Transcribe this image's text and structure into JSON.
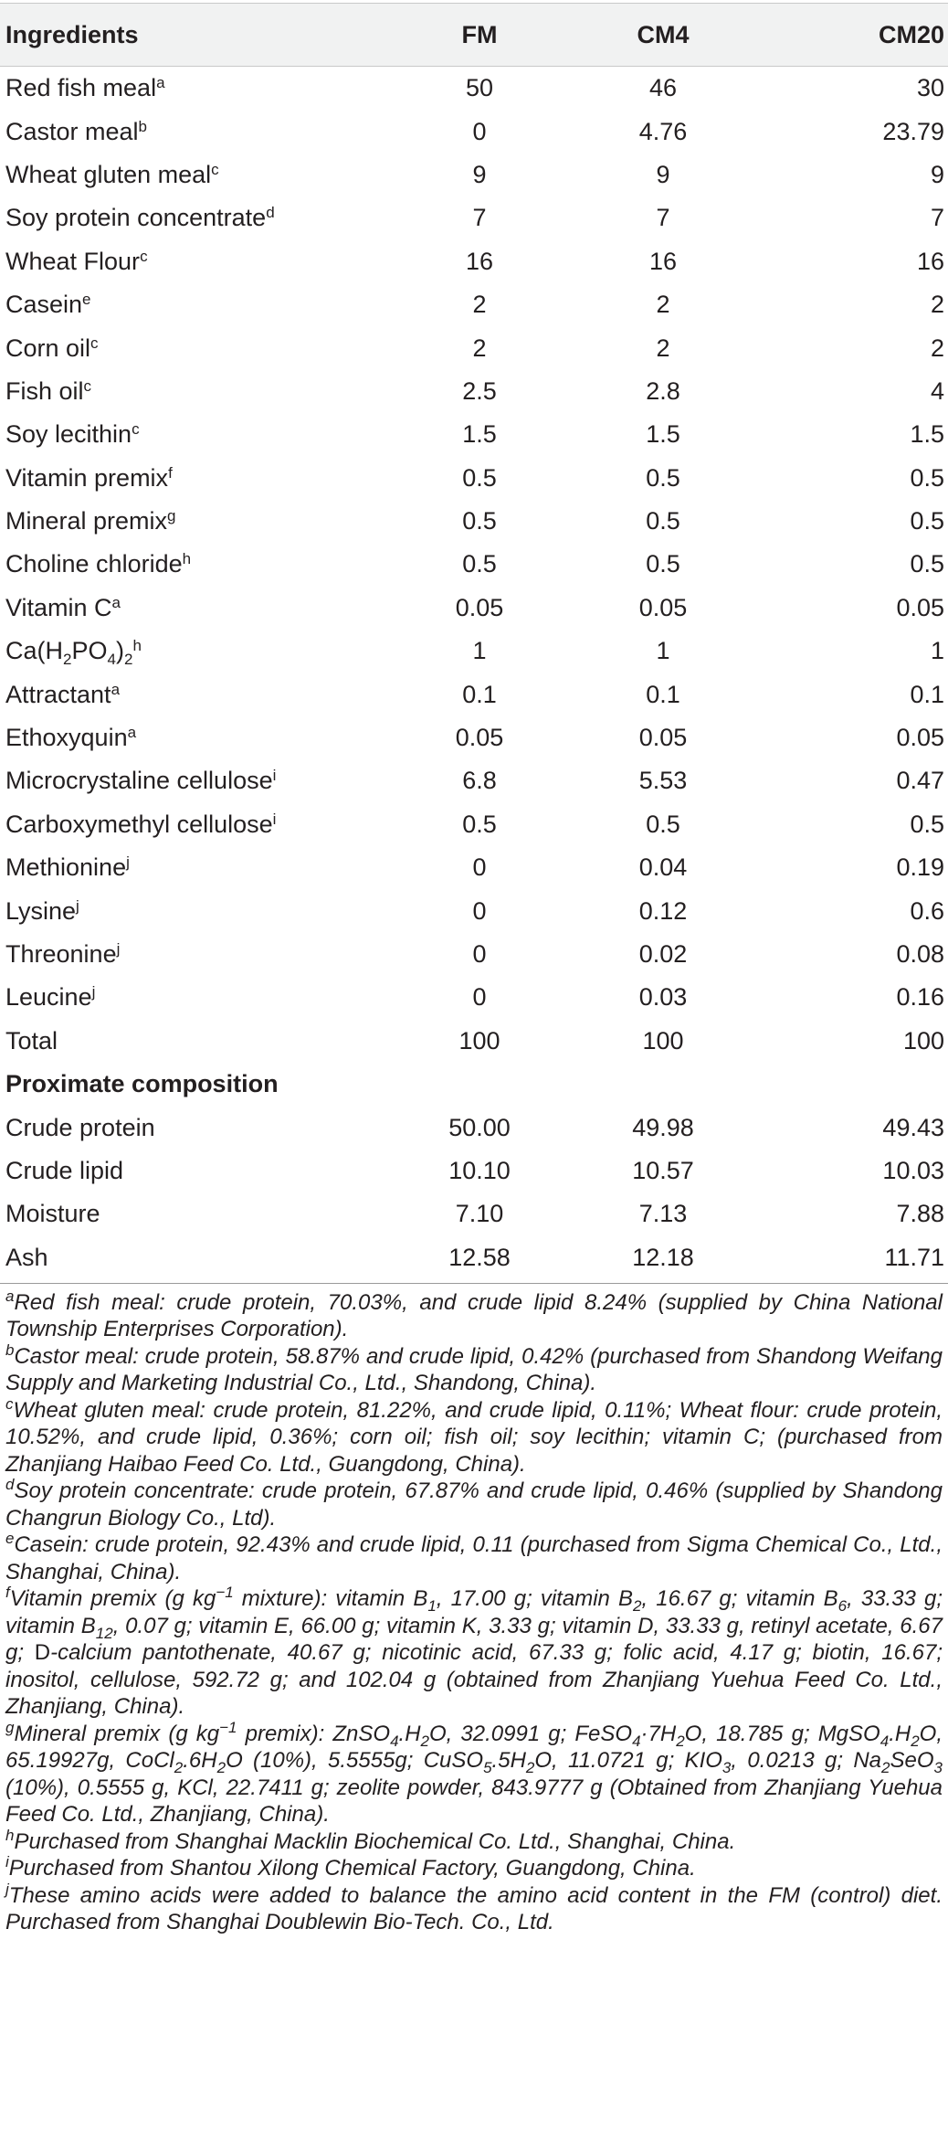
{
  "table": {
    "headers": {
      "ingredients": "Ingredients",
      "fm": "FM",
      "cm4": "CM4",
      "cm20": "CM20"
    },
    "rows": [
      {
        "name": "Red fish meal",
        "sup": "a",
        "fm": "50",
        "cm4": "46",
        "cm20": "30"
      },
      {
        "name": "Castor meal",
        "sup": "b",
        "fm": "0",
        "cm4": "4.76",
        "cm20": "23.79"
      },
      {
        "name": "Wheat gluten meal",
        "sup": "c",
        "fm": "9",
        "cm4": "9",
        "cm20": "9"
      },
      {
        "name": "Soy protein concentrate",
        "sup": "d",
        "fm": "7",
        "cm4": "7",
        "cm20": "7"
      },
      {
        "name": "Wheat Flour",
        "sup": "c",
        "fm": "16",
        "cm4": "16",
        "cm20": "16"
      },
      {
        "name": "Casein",
        "sup": "e",
        "fm": "2",
        "cm4": "2",
        "cm20": "2"
      },
      {
        "name": "Corn oil",
        "sup": "c",
        "fm": "2",
        "cm4": "2",
        "cm20": "2"
      },
      {
        "name": "Fish oil",
        "sup": "c",
        "fm": "2.5",
        "cm4": "2.8",
        "cm20": "4"
      },
      {
        "name": "Soy lecithin",
        "sup": "c",
        "fm": "1.5",
        "cm4": "1.5",
        "cm20": "1.5"
      },
      {
        "name": "Vitamin premix",
        "sup": "f",
        "fm": "0.5",
        "cm4": "0.5",
        "cm20": "0.5"
      },
      {
        "name": "Mineral premix",
        "sup": "g",
        "fm": "0.5",
        "cm4": "0.5",
        "cm20": "0.5"
      },
      {
        "name": "Choline chloride",
        "sup": "h",
        "fm": "0.5",
        "cm4": "0.5",
        "cm20": "0.5"
      },
      {
        "name": "Vitamin C",
        "sup": "a",
        "fm": "0.05",
        "cm4": "0.05",
        "cm20": "0.05"
      },
      {
        "name": "Ca(H",
        "sup": "h",
        "fm": "1",
        "cm4": "1",
        "cm20": "1",
        "chem": true
      },
      {
        "name": "Attractant",
        "sup": "a",
        "fm": "0.1",
        "cm4": "0.1",
        "cm20": "0.1"
      },
      {
        "name": "Ethoxyquin",
        "sup": "a",
        "fm": "0.05",
        "cm4": "0.05",
        "cm20": "0.05"
      },
      {
        "name": "Microcrystaline cellulose",
        "sup": "i",
        "fm": "6.8",
        "cm4": "5.53",
        "cm20": "0.47"
      },
      {
        "name": "Carboxymethyl cellulose",
        "sup": "i",
        "fm": "0.5",
        "cm4": "0.5",
        "cm20": "0.5"
      },
      {
        "name": "Methionine",
        "sup": "j",
        "fm": "0",
        "cm4": "0.04",
        "cm20": "0.19"
      },
      {
        "name": "Lysine",
        "sup": "j",
        "fm": "0",
        "cm4": "0.12",
        "cm20": "0.6"
      },
      {
        "name": "Threonine",
        "sup": "j",
        "fm": "0",
        "cm4": "0.02",
        "cm20": "0.08"
      },
      {
        "name": "Leucine",
        "sup": "j",
        "fm": "0",
        "cm4": "0.03",
        "cm20": "0.16"
      },
      {
        "name": "Total",
        "sup": "",
        "fm": "100",
        "cm4": "100",
        "cm20": "100"
      }
    ],
    "section_title": "Proximate composition",
    "proximate": [
      {
        "name": "Crude protein",
        "fm": "50.00",
        "cm4": "49.98",
        "cm20": "49.43"
      },
      {
        "name": "Crude lipid",
        "fm": "10.10",
        "cm4": "10.57",
        "cm20": "10.03"
      },
      {
        "name": "Moisture",
        "fm": "7.10",
        "cm4": "7.13",
        "cm20": "7.88"
      },
      {
        "name": "Ash",
        "fm": "12.58",
        "cm4": "12.18",
        "cm20": "11.71"
      }
    ]
  },
  "notes": {
    "a": "Red fish meal: crude protein, 70.03%, and crude lipid 8.24% (supplied by China National Township Enterprises Corporation).",
    "b": "Castor meal: crude protein, 58.87% and crude lipid, 0.42% (purchased from Shandong Weifang Supply and Marketing Industrial Co., Ltd., Shandong, China).",
    "c": "Wheat gluten meal: crude protein, 81.22%, and crude lipid, 0.11%; Wheat flour: crude protein, 10.52%, and crude lipid, 0.36%; corn oil; fish oil; soy lecithin; vitamin C; (purchased from Zhanjiang Haibao Feed Co. Ltd., Guangdong, China).",
    "d": "Soy protein concentrate: crude protein, 67.87% and crude lipid, 0.46% (supplied by Shandong Changrun Biology Co., Ltd).",
    "e": "Casein: crude protein, 92.43% and crude lipid, 0.11 (purchased from Sigma Chemical Co., Ltd., Shanghai, China).",
    "h": "Purchased from Shanghai Macklin Biochemical Co. Ltd., Shanghai, China.",
    "i": "Purchased from Shantou Xilong Chemical Factory, Guangdong, China.",
    "j": "These amino acids were added to balance the amino acid content in the FM (control) diet. Purchased from Shanghai Doublewin Bio-Tech. Co., Ltd."
  },
  "note_f": {
    "p1": "Vitamin premix (g kg",
    "p2": " mixture): vitamin B",
    "p3": ", 17.00 g; vitamin B",
    "p4": ", 16.67 g; vitamin B",
    "p5": ", 33.33 g; vitamin B",
    "p6": ", 0.07 g; vitamin E, 66.00 g; vitamin K, 3.33 g; vitamin D, 33.33 g, retinyl acetate, 6.67 g; ",
    "p7": "D",
    "p8": "-calcium pantothenate, 40.67 g; nicotinic acid, 67.33 g; folic acid, 4.17 g; biotin, 16.67; inositol, cellulose, 592.72 g; and 102.04 g (obtained from Zhanjiang Yuehua Feed Co. Ltd., Zhanjiang, China)."
  },
  "note_g": {
    "p1": "Mineral premix (g kg",
    "p2": " premix): ZnSO",
    "p3": ".H",
    "p4": "O, 32.0991 g; FeSO",
    "p5": "O, 18.785 g; MgSO",
    "p6": "O, 65.19927g, CoCl",
    "p7": ".6H",
    "p8": "O (10%), 5.5555g; CuSO",
    "p9": ".5H",
    "p10": "O, 11.0721 g; KIO",
    "p11": ", 0.0213 g; Na",
    "p12": "SeO",
    "p13": " (10%), 0.5555 g, KCl, 22.7411 g; zeolite powder, 843.9777 g (Obtained from Zhanjiang Yuehua Feed Co. Ltd., Zhanjiang, China)."
  }
}
